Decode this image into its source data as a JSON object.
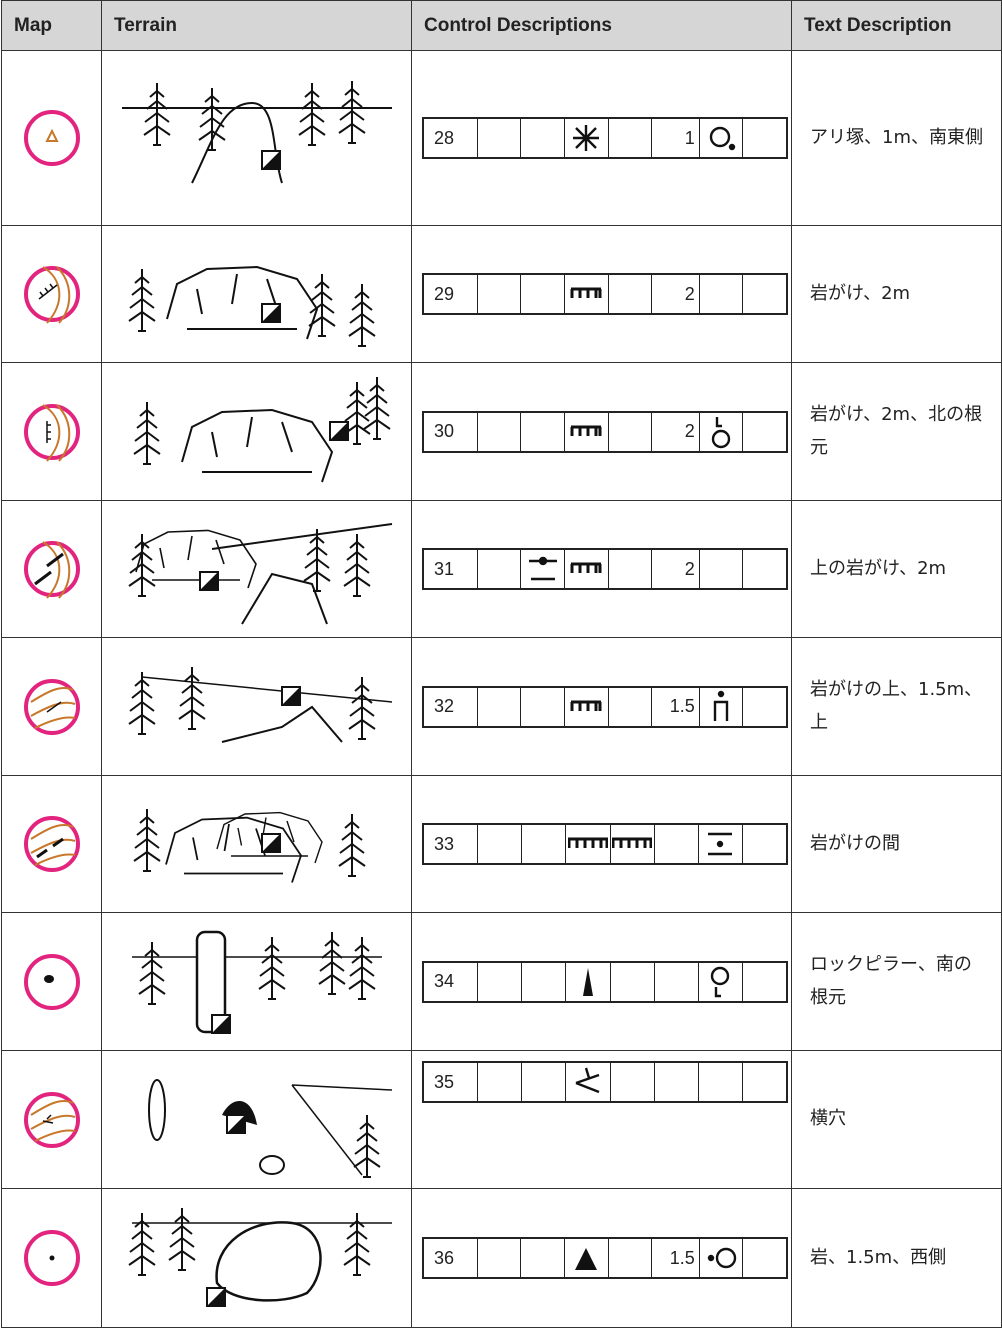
{
  "header": {
    "columns": [
      "Map",
      "Terrain",
      "Control Descriptions",
      "Text Description"
    ]
  },
  "rows": [
    {
      "number": "28",
      "dimension": "1",
      "text": "アリ塚、1m、南東側"
    },
    {
      "number": "29",
      "dimension": "2",
      "text": "岩がけ、2m"
    },
    {
      "number": "30",
      "dimension": "2",
      "text": "岩がけ、2m、北の根元"
    },
    {
      "number": "31",
      "dimension": "2",
      "text": "上の岩がけ、2m"
    },
    {
      "number": "32",
      "dimension": "1.5",
      "text": "岩がけの上、1.5m、上"
    },
    {
      "number": "33",
      "text": "岩がけの間"
    },
    {
      "number": "34",
      "text": "ロックピラー、南の根元"
    },
    {
      "number": "35",
      "text": "横穴"
    },
    {
      "number": "36",
      "dimension": "1.5",
      "text": "岩、1.5m、西側"
    }
  ]
}
